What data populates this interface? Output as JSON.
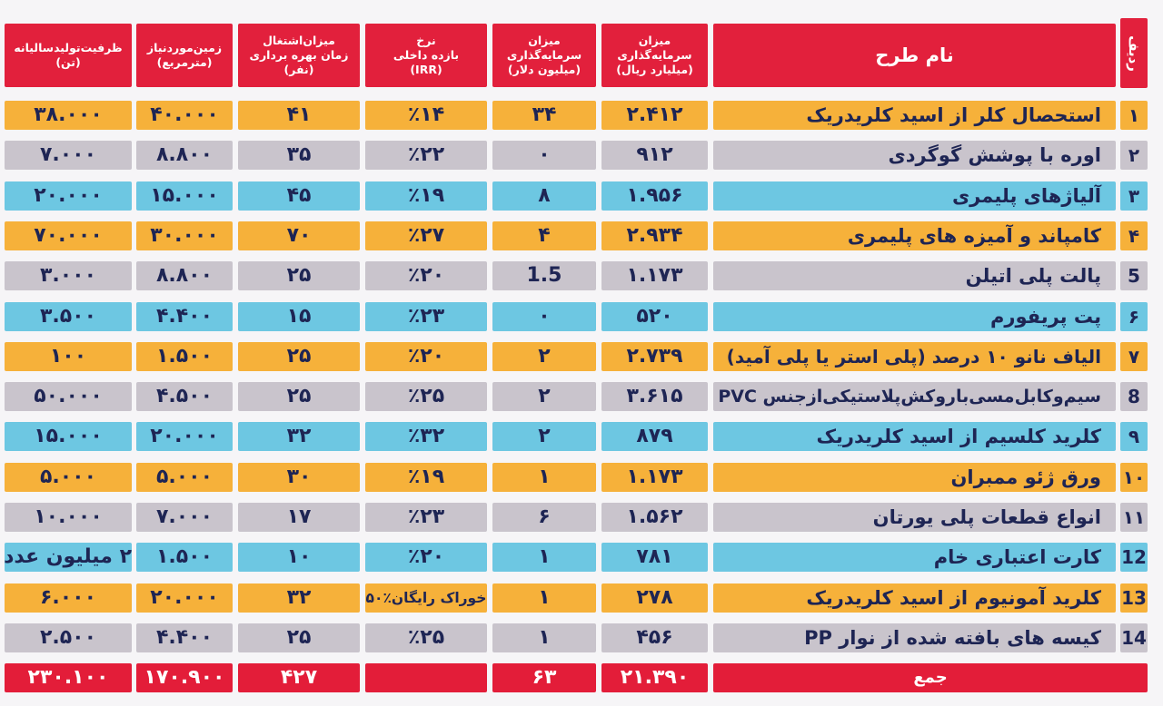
{
  "colors": {
    "header": "#e2203c",
    "total": "#e31d39",
    "orange": "#f6b13a",
    "grey": "#c9c4cc",
    "blue": "#6dc7e2",
    "text": "#1e2554"
  },
  "header": {
    "row_no": "ردیف",
    "name": "نام طرح",
    "investment_rial": "میزان\nسرمایه‌گذاری\n(میلیارد ریال)",
    "investment_usd": "میزان\nسرمایه‌گذاری\n(میلیون دلار)",
    "irr": "نرخ\nبازده داخلی\n(IRR)",
    "employment": "میزان‌اشتغال\nزمان بهره برداری\n(نفر)",
    "land": "زمین‌موردنیاز\n(مترمربع)",
    "capacity": "ظرفیت‌تولیدسالیانه\n(تن)"
  },
  "rows": [
    {
      "no": "۱",
      "name": "استحصال کلر از اسید کلریدریک",
      "investment_rial": "۲.۴۱۲",
      "investment_usd": "۳۴",
      "irr": "٪۱۴",
      "employment": "۴۱",
      "land": "۴۰.۰۰۰",
      "capacity": "۳۸.۰۰۰",
      "color": "orange"
    },
    {
      "no": "۲",
      "name": "اوره با پوشش گوگردی",
      "investment_rial": "۹۱۲",
      "investment_usd": "۰",
      "irr": "٪۲۲",
      "employment": "۳۵",
      "land": "۸.۸۰۰",
      "capacity": "۷.۰۰۰",
      "color": "grey"
    },
    {
      "no": "۳",
      "name": "آلیاژهای پلیمری",
      "investment_rial": "۱.۹۵۶",
      "investment_usd": "۸",
      "irr": "٪۱۹",
      "employment": "۴۵",
      "land": "۱۵.۰۰۰",
      "capacity": "۲۰.۰۰۰",
      "color": "blue"
    },
    {
      "no": "۴",
      "name": "کامپاند و آمیزه های پلیمری",
      "investment_rial": "۲.۹۳۴",
      "investment_usd": "۴",
      "irr": "٪۲۷",
      "employment": "۷۰",
      "land": "۳۰.۰۰۰",
      "capacity": "۷۰.۰۰۰",
      "color": "orange"
    },
    {
      "no": "5",
      "name": "پالت پلی اتیلن",
      "investment_rial": "۱.۱۷۳",
      "investment_usd": "1.5",
      "irr": "٪۲۰",
      "employment": "۲۵",
      "land": "۸.۸۰۰",
      "capacity": "۳.۰۰۰",
      "color": "grey"
    },
    {
      "no": "۶",
      "name": "پت پریفورم",
      "investment_rial": "۵۲۰",
      "investment_usd": "۰",
      "irr": "٪۲۳",
      "employment": "۱۵",
      "land": "۴.۴۰۰",
      "capacity": "۳.۵۰۰",
      "color": "blue"
    },
    {
      "no": "۷",
      "name": "الیاف نانو ۱۰ درصد  (پلی استر یا پلی آمید)",
      "investment_rial": "۲.۷۳۹",
      "investment_usd": "۲",
      "irr": "٪۲۰",
      "employment": "۲۵",
      "land": "۱.۵۰۰",
      "capacity": "۱۰۰",
      "color": "orange"
    },
    {
      "no": "8",
      "name": "سیم‌وکابل‌مسی‌باروکش‌پلاستیکی‌ازجنس PVC",
      "investment_rial": "۳.۶۱۵",
      "investment_usd": "۲",
      "irr": "٪۲۵",
      "employment": "۲۵",
      "land": "۴.۵۰۰",
      "capacity": "۵۰.۰۰۰",
      "color": "grey"
    },
    {
      "no": "۹",
      "name": "کلرید کلسیم از اسید کلریدریک",
      "investment_rial": "۸۷۹",
      "investment_usd": "۲",
      "irr": "٪۳۲",
      "employment": "۳۲",
      "land": "۲۰.۰۰۰",
      "capacity": "۱۵.۰۰۰",
      "color": "blue"
    },
    {
      "no": "۱۰",
      "name": "ورق ژئو ممبران",
      "investment_rial": "۱.۱۷۳",
      "investment_usd": "۱",
      "irr": "٪۱۹",
      "employment": "۳۰",
      "land": "۵.۰۰۰",
      "capacity": "۵.۰۰۰",
      "color": "orange"
    },
    {
      "no": "۱۱",
      "name": "انواع قطعات پلی یورتان",
      "investment_rial": "۱.۵۶۲",
      "investment_usd": "۶",
      "irr": "٪۲۳",
      "employment": "۱۷",
      "land": "۷.۰۰۰",
      "capacity": "۱۰.۰۰۰",
      "color": "grey"
    },
    {
      "no": "12",
      "name": "کارت اعتباری خام",
      "investment_rial": "۷۸۱",
      "investment_usd": "۱",
      "irr": "٪۲۰",
      "employment": "۱۰",
      "land": "۱.۵۰۰",
      "capacity": "۲ میلیون عدد",
      "color": "blue"
    },
    {
      "no": "13",
      "name": "کلرید آمونیوم از اسید کلریدریک",
      "investment_rial": "۲۷۸",
      "investment_usd": "۱",
      "irr": "خوراک رایگان٪۵۰",
      "employment": "۳۲",
      "land": "۲۰.۰۰۰",
      "capacity": "۶.۰۰۰",
      "color": "orange"
    },
    {
      "no": "14",
      "name": "کیسه های بافته شده از نوار PP",
      "investment_rial": "۴۵۶",
      "investment_usd": "۱",
      "irr": "٪۲۵",
      "employment": "۲۵",
      "land": "۴.۴۰۰",
      "capacity": "۲.۵۰۰",
      "color": "grey"
    }
  ],
  "total": {
    "label": "جمع",
    "investment_rial": "۲۱.۳۹۰",
    "investment_usd": "۶۳",
    "employment": "۴۲۷",
    "land": "۱۷۰.۹۰۰",
    "capacity": "۲۳۰.۱۰۰"
  }
}
